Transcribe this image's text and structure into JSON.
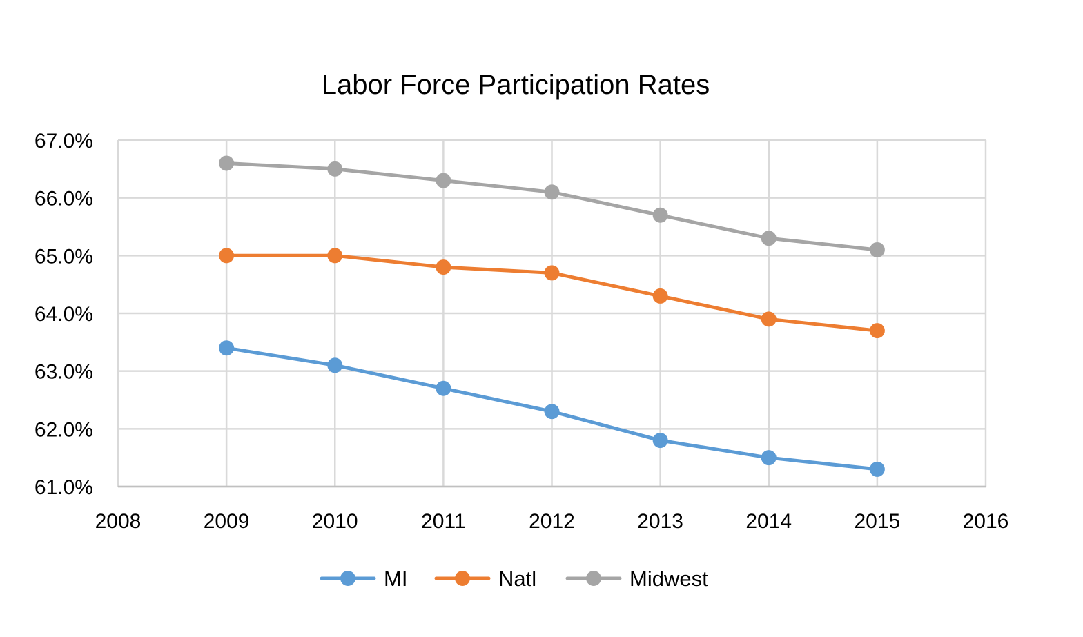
{
  "chart_data": {
    "type": "line",
    "title": "Labor Force Participation Rates",
    "xlabel": "",
    "ylabel": "",
    "xlim": [
      2008,
      2016
    ],
    "ylim": [
      61.0,
      67.0
    ],
    "x_ticks": [
      2008,
      2009,
      2010,
      2011,
      2012,
      2013,
      2014,
      2015,
      2016
    ],
    "x_tick_labels": [
      "2008",
      "2009",
      "2010",
      "2011",
      "2012",
      "2013",
      "2014",
      "2015",
      "2016"
    ],
    "y_ticks": [
      61,
      62,
      63,
      64,
      65,
      66,
      67
    ],
    "y_tick_labels": [
      "61.0%",
      "62.0%",
      "63.0%",
      "64.0%",
      "65.0%",
      "66.0%",
      "67.0%"
    ],
    "grid": true,
    "legend_position": "bottom",
    "x": [
      2009,
      2010,
      2011,
      2012,
      2013,
      2014,
      2015
    ],
    "series": [
      {
        "name": "MI",
        "color": "#5b9bd5",
        "values": [
          63.4,
          63.1,
          62.7,
          62.3,
          61.8,
          61.5,
          61.3
        ]
      },
      {
        "name": "Natl",
        "color": "#ed7d31",
        "values": [
          65.0,
          65.0,
          64.8,
          64.7,
          64.3,
          63.9,
          63.7
        ]
      },
      {
        "name": "Midwest",
        "color": "#a5a5a5",
        "values": [
          66.6,
          66.5,
          66.3,
          66.1,
          65.7,
          65.3,
          65.1
        ]
      }
    ]
  }
}
